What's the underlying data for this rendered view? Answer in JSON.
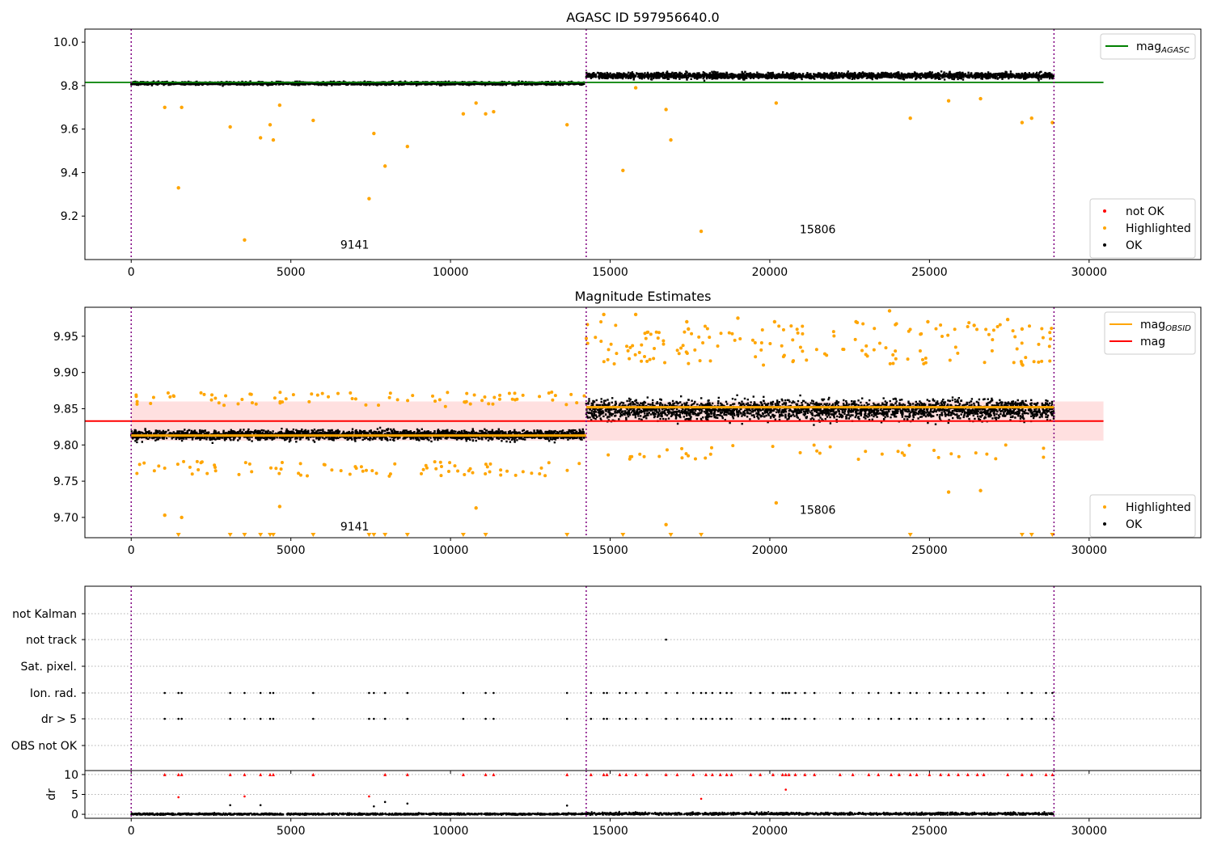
{
  "chart_data": [
    {
      "type": "scatter",
      "title": "AGASC ID 597956640.0",
      "xlim": [
        -1450,
        33500
      ],
      "ylim": [
        9.0,
        10.06
      ],
      "xticks": [
        0,
        5000,
        10000,
        15000,
        20000,
        25000,
        30000
      ],
      "yticks": [
        9.2,
        9.4,
        9.6,
        9.8,
        10.0
      ],
      "ytick_labels": [
        "9.2",
        "9.4",
        "9.6",
        "9.8",
        "10.0"
      ],
      "observation_boundaries": [
        0,
        14250,
        28900
      ],
      "annotations": [
        {
          "text": "9141",
          "x": 7000,
          "y": 9.05
        },
        {
          "text": "15806",
          "x": 21500,
          "y": 9.12
        }
      ],
      "lines": [
        {
          "name": "mag_AGASC",
          "value": 9.815,
          "x_range": [
            -1450,
            30450
          ],
          "color": "#008000"
        }
      ],
      "legend_top": {
        "placement": "top-right",
        "entries": [
          {
            "label": "mag",
            "sub": "AGASC",
            "kind": "line",
            "color": "#008000"
          }
        ]
      },
      "legend_bottom": {
        "placement": "lower-right",
        "entries": [
          {
            "label": "not OK",
            "kind": "dot",
            "color": "#ff0000"
          },
          {
            "label": "Highlighted",
            "kind": "dot",
            "color": "#ffa500"
          },
          {
            "label": "OK",
            "kind": "dot",
            "color": "#000000"
          }
        ]
      },
      "series": [
        {
          "name": "OK",
          "color": "#000000",
          "segments": [
            {
              "x_range": [
                0,
                14200
              ],
              "center": 9.815,
              "spread": 0.025
            },
            {
              "x_range": [
                14250,
                28900
              ],
              "center": 9.85,
              "spread": 0.05
            }
          ]
        },
        {
          "name": "Highlighted",
          "color": "#ffa500",
          "points": [
            [
              1050,
              9.7
            ],
            [
              1480,
              9.33
            ],
            [
              1580,
              9.7
            ],
            [
              3100,
              9.61
            ],
            [
              3550,
              9.09
            ],
            [
              4050,
              9.56
            ],
            [
              4350,
              9.62
            ],
            [
              4450,
              9.55
            ],
            [
              4650,
              9.71
            ],
            [
              5700,
              9.64
            ],
            [
              7450,
              9.28
            ],
            [
              7600,
              9.58
            ],
            [
              7950,
              9.43
            ],
            [
              8650,
              9.52
            ],
            [
              10400,
              9.67
            ],
            [
              10800,
              9.72
            ],
            [
              11100,
              9.67
            ],
            [
              11350,
              9.68
            ],
            [
              13650,
              9.62
            ],
            [
              15400,
              9.41
            ],
            [
              15800,
              9.79
            ],
            [
              16750,
              9.69
            ],
            [
              16900,
              9.55
            ],
            [
              17850,
              9.13
            ],
            [
              20200,
              9.72
            ],
            [
              24400,
              9.65
            ],
            [
              25600,
              9.73
            ],
            [
              26600,
              9.74
            ],
            [
              27900,
              9.63
            ],
            [
              28200,
              9.65
            ],
            [
              28850,
              9.63
            ]
          ]
        }
      ]
    },
    {
      "type": "scatter",
      "title": "Magnitude Estimates",
      "xlim": [
        -1450,
        33500
      ],
      "ylim": [
        9.672,
        9.99
      ],
      "xticks": [
        0,
        5000,
        10000,
        15000,
        20000,
        25000,
        30000
      ],
      "yticks": [
        9.7,
        9.75,
        9.8,
        9.85,
        9.9,
        9.95
      ],
      "ytick_labels": [
        "9.70",
        "9.75",
        "9.80",
        "9.85",
        "9.90",
        "9.95"
      ],
      "observation_boundaries": [
        0,
        14250,
        28900
      ],
      "annotations": [
        {
          "text": "9141",
          "x": 7000,
          "y": 9.682
        },
        {
          "text": "15806",
          "x": 21500,
          "y": 9.705
        }
      ],
      "mag_band": [
        9.806,
        9.86
      ],
      "lines": [
        {
          "name": "mag",
          "value": 9.833,
          "x_range": [
            -1450,
            30450
          ],
          "color": "#ff0000"
        },
        {
          "name": "mag_OBSID",
          "segments": [
            {
              "x_range": [
                0,
                14250
              ],
              "value": 9.813
            },
            {
              "x_range": [
                14250,
                28900
              ],
              "value": 9.852
            }
          ],
          "color": "#ffa500"
        }
      ],
      "legend_top": {
        "placement": "top-right",
        "entries": [
          {
            "label": "mag",
            "sub": "OBSID",
            "kind": "line",
            "color": "#ffa500"
          },
          {
            "label": "mag",
            "kind": "line",
            "color": "#ff0000"
          }
        ]
      },
      "legend_bottom": {
        "placement": "lower-right",
        "entries": [
          {
            "label": "Highlighted",
            "kind": "dot",
            "color": "#ffa500"
          },
          {
            "label": "OK",
            "kind": "dot",
            "color": "#000000"
          }
        ]
      },
      "series": [
        {
          "name": "OK",
          "color": "#000000",
          "segments": [
            {
              "x_range": [
                0,
                14200
              ],
              "center": 9.815,
              "spread": 0.025
            },
            {
              "x_range": [
                14250,
                28900
              ],
              "center": 9.85,
              "spread": 0.05
            }
          ]
        },
        {
          "name": "Highlighted",
          "color": "#ffa500",
          "points": [
            [
              1050,
              9.703
            ],
            [
              1580,
              9.7
            ],
            [
              4650,
              9.715
            ],
            [
              10800,
              9.713
            ],
            [
              16750,
              9.69
            ],
            [
              20200,
              9.72
            ],
            [
              25600,
              9.735
            ],
            [
              26600,
              9.737
            ],
            [
              14800,
              9.98
            ],
            [
              15800,
              9.98
            ],
            [
              17400,
              9.97
            ],
            [
              17450,
              9.96
            ],
            [
              19000,
              9.975
            ],
            [
              20150,
              9.97
            ],
            [
              22700,
              9.97
            ],
            [
              23750,
              9.985
            ],
            [
              24950,
              9.97
            ],
            [
              26400,
              9.965
            ],
            [
              27450,
              9.973
            ],
            [
              27900,
              9.96
            ]
          ]
        },
        {
          "name": "Highlighted (below range)",
          "color": "#ffa500",
          "marker": "triangle-down",
          "x": [
            1480,
            3100,
            3550,
            4050,
            4350,
            4450,
            5700,
            7450,
            7600,
            7950,
            8650,
            10400,
            11100,
            13650,
            15400,
            16900,
            17850,
            24400,
            27900,
            28200,
            28850
          ]
        }
      ]
    },
    {
      "type": "scatter",
      "title": "",
      "xlim": [
        -1450,
        33500
      ],
      "observation_boundaries": [
        0,
        14250,
        28900
      ],
      "flag_rows": [
        "not Kalman",
        "not track",
        "Sat. pixel.",
        "Ion. rad.",
        "dr > 5",
        "OBS not OK"
      ],
      "flags": {
        "not track": [
          16750
        ],
        "dr > 5": [
          1050,
          1480,
          1580,
          3100,
          3550,
          4050,
          4350,
          4450,
          5700,
          7450,
          7600,
          7950,
          8650,
          10400,
          11100,
          11350,
          13650,
          14400,
          14800,
          14900,
          15300,
          15500,
          15800,
          16150,
          16750,
          17100,
          17600,
          17850,
          18000,
          18200,
          18450,
          18650,
          18800,
          19400,
          19700,
          20100,
          20400,
          20500,
          20600,
          20800,
          21100,
          21400,
          22200,
          22600,
          23100,
          23400,
          23800,
          24050,
          24400,
          24600,
          25000,
          25350,
          25600,
          25900,
          26200,
          26500,
          26700,
          27450,
          27900,
          28200,
          28650,
          28850
        ],
        "Ion. rad.": [
          1050,
          1480,
          1580,
          3100,
          3550,
          4050,
          4350,
          4450,
          5700,
          7450,
          7600,
          7950,
          8650,
          10400,
          11100,
          11350,
          13650,
          14400,
          14800,
          14900,
          15300,
          15500,
          15800,
          16150,
          16750,
          17100,
          17600,
          17850,
          18000,
          18200,
          18450,
          18650,
          18800,
          19400,
          19700,
          20100,
          20400,
          20500,
          20600,
          20800,
          21100,
          21400,
          22200,
          22600,
          23100,
          23400,
          23800,
          24050,
          24400,
          24600,
          25000,
          25350,
          25600,
          25900,
          26200,
          26500,
          26700,
          27450,
          27900,
          28200,
          28650,
          28850
        ]
      },
      "dr_panel": {
        "ylabel": "dr",
        "ylim": [
          -1,
          11
        ],
        "yticks": [
          0,
          5,
          10
        ],
        "ytick_labels": [
          "0",
          "5",
          "10"
        ],
        "clipped_at_10": [
          1050,
          1480,
          1580,
          3100,
          3550,
          4050,
          4350,
          4450,
          5700,
          7950,
          8650,
          10400,
          11100,
          11350,
          13650,
          14400,
          14800,
          14900,
          15300,
          15500,
          15800,
          16150,
          16750,
          17100,
          17600,
          18000,
          18200,
          18450,
          18650,
          18800,
          19400,
          19700,
          20100,
          20400,
          20500,
          20600,
          20800,
          21100,
          21400,
          22200,
          22600,
          23100,
          23400,
          23800,
          24050,
          24400,
          24600,
          25000,
          25350,
          25600,
          25900,
          26200,
          26500,
          26700,
          27450,
          27900,
          28200,
          28650,
          28850
        ],
        "red_points": [
          [
            1480,
            4.3
          ],
          [
            3550,
            4.5
          ],
          [
            7450,
            4.5
          ],
          [
            20500,
            6.2
          ],
          [
            17850,
            3.9
          ]
        ],
        "black_points": [
          [
            3100,
            2.3
          ],
          [
            4050,
            2.3
          ],
          [
            7600,
            2.0
          ],
          [
            7950,
            3.1
          ],
          [
            8650,
            2.7
          ],
          [
            13650,
            2.2
          ]
        ]
      }
    }
  ]
}
